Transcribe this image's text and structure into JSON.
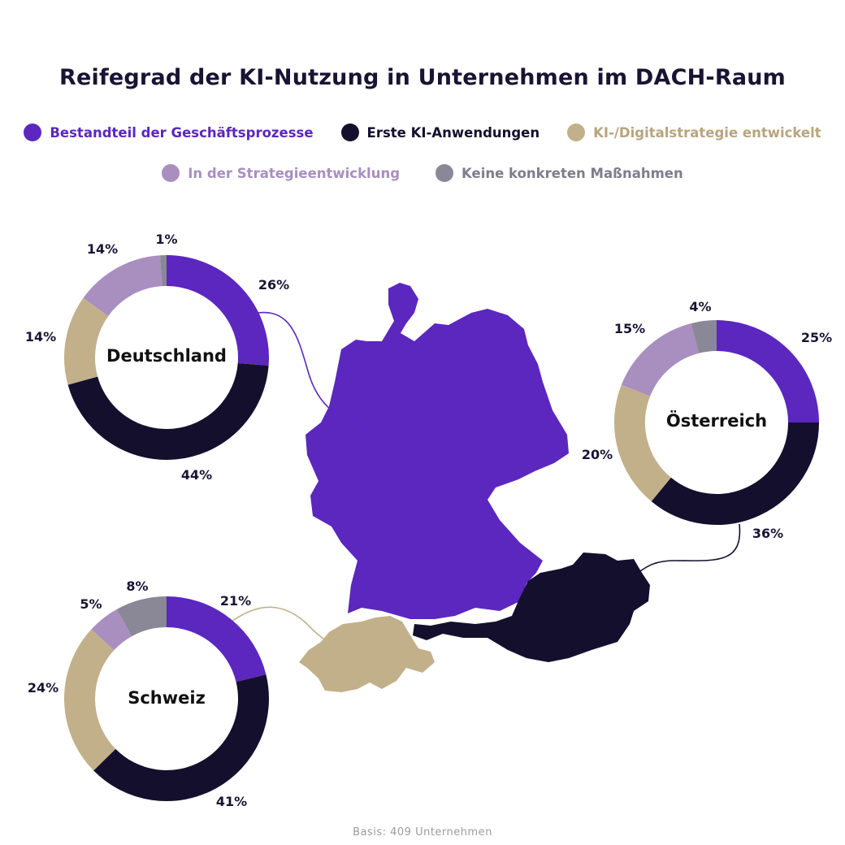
{
  "colors": {
    "bestandteil": "#5b27bf",
    "erste": "#150f2e",
    "strategie_entwickelt": "#c2b08a",
    "in_entwicklung": "#a88fbf",
    "keine": "#8a8796",
    "connector_de": "#5b27bf",
    "connector_at": "#150f2e",
    "connector_ch": "#c2b08a"
  },
  "chart_data": {
    "type": "pie",
    "title": "Reifegrad der KI-Nutzung in Unternehmen im DACH-Raum",
    "series_names": [
      "Bestandteil der Geschäftsprozesse",
      "Erste KI-Anwendungen",
      "KI-/Digitalstrategie entwickelt",
      "In der Strategieentwicklung",
      "Keine konkreten Maßnahmen"
    ],
    "countries": [
      {
        "name": "Deutschland",
        "values": [
          26,
          44,
          14,
          14,
          1
        ],
        "labels": [
          "26%",
          "44%",
          "14%",
          "14%",
          "1%"
        ]
      },
      {
        "name": "Österreich",
        "values": [
          25,
          36,
          20,
          15,
          4
        ],
        "labels": [
          "25%",
          "36%",
          "20%",
          "15%",
          "4%"
        ]
      },
      {
        "name": "Schweiz",
        "values": [
          21,
          41,
          24,
          5,
          8
        ],
        "labels": [
          "21%",
          "41%",
          "24%",
          "5%",
          "8%"
        ]
      }
    ],
    "style": "donut with country map",
    "footnote": "Basis: 409 Unternehmen"
  }
}
